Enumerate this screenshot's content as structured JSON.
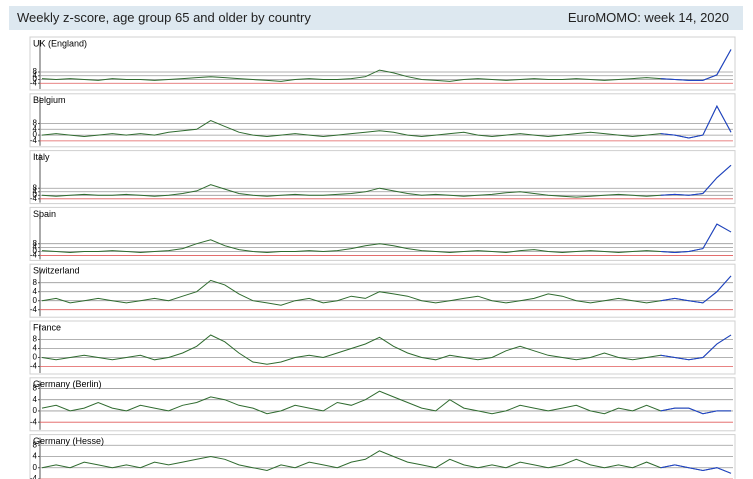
{
  "title": "Weekly z-score, age group 65 and older by country",
  "source": "EuroMOMO: week 14, 2020",
  "chart_data": [
    {
      "type": "line",
      "title": "UK (England)",
      "ylim": [
        -8,
        40
      ],
      "yticks": [
        -4,
        0,
        4,
        8
      ],
      "grid": true,
      "series": [
        {
          "color": "#2f6b2f",
          "values": [
            1,
            0,
            1,
            0,
            -1,
            1,
            0,
            0,
            -1,
            0,
            1,
            2,
            3,
            2,
            1,
            0,
            -1,
            -2,
            0,
            1,
            0,
            0,
            1,
            3,
            10,
            7,
            3,
            0,
            -1,
            -2,
            0,
            1,
            0,
            -1,
            0,
            1,
            0,
            0,
            1,
            0,
            -1,
            0,
            1,
            2,
            1,
            0,
            -1,
            -1,
            5,
            32
          ]
        },
        {
          "color": "#1f3fd0",
          "values": [
            null,
            null,
            null,
            null,
            null,
            null,
            null,
            null,
            null,
            null,
            null,
            null,
            null,
            null,
            null,
            null,
            null,
            null,
            null,
            null,
            null,
            null,
            null,
            null,
            null,
            null,
            null,
            null,
            null,
            null,
            null,
            null,
            null,
            null,
            null,
            null,
            null,
            null,
            null,
            null,
            null,
            null,
            null,
            null,
            1,
            0,
            -1,
            -1,
            5,
            32
          ]
        }
      ]
    },
    {
      "type": "line",
      "title": "Belgium",
      "ylim": [
        -6,
        25
      ],
      "yticks": [
        -4,
        0,
        4,
        8
      ],
      "grid": true,
      "series": [
        {
          "color": "#2f6b2f",
          "values": [
            0,
            1,
            0,
            -1,
            0,
            1,
            0,
            1,
            0,
            2,
            3,
            4,
            10,
            6,
            2,
            0,
            -1,
            0,
            1,
            0,
            -1,
            0,
            1,
            2,
            3,
            2,
            0,
            -1,
            0,
            1,
            2,
            0,
            -1,
            0,
            1,
            0,
            -1,
            0,
            1,
            2,
            1,
            0,
            -1,
            0,
            1,
            0,
            -2,
            0,
            20,
            2
          ]
        },
        {
          "color": "#1f3fd0",
          "values": [
            null,
            null,
            null,
            null,
            null,
            null,
            null,
            null,
            null,
            null,
            null,
            null,
            null,
            null,
            null,
            null,
            null,
            null,
            null,
            null,
            null,
            null,
            null,
            null,
            null,
            null,
            null,
            null,
            null,
            null,
            null,
            null,
            null,
            null,
            null,
            null,
            null,
            null,
            null,
            null,
            null,
            null,
            null,
            null,
            1,
            0,
            -2,
            0,
            20,
            2
          ]
        }
      ]
    },
    {
      "type": "line",
      "title": "Italy",
      "ylim": [
        -6,
        45
      ],
      "yticks": [
        -4,
        0,
        4,
        8
      ],
      "grid": true,
      "series": [
        {
          "color": "#2f6b2f",
          "values": [
            0,
            -1,
            0,
            1,
            0,
            0,
            1,
            0,
            -1,
            0,
            2,
            5,
            12,
            7,
            2,
            0,
            -1,
            0,
            1,
            0,
            0,
            1,
            2,
            4,
            8,
            5,
            2,
            0,
            1,
            0,
            -1,
            0,
            1,
            3,
            4,
            2,
            0,
            -1,
            -2,
            -1,
            0,
            1,
            0,
            -1,
            0,
            1,
            0,
            2,
            20,
            34
          ]
        },
        {
          "color": "#1f3fd0",
          "values": [
            null,
            null,
            null,
            null,
            null,
            null,
            null,
            null,
            null,
            null,
            null,
            null,
            null,
            null,
            null,
            null,
            null,
            null,
            null,
            null,
            null,
            null,
            null,
            null,
            null,
            null,
            null,
            null,
            null,
            null,
            null,
            null,
            null,
            null,
            null,
            null,
            null,
            null,
            null,
            null,
            null,
            null,
            null,
            null,
            0,
            1,
            0,
            2,
            20,
            34
          ]
        }
      ]
    },
    {
      "type": "line",
      "title": "Spain",
      "ylim": [
        -6,
        40
      ],
      "yticks": [
        -4,
        0,
        4,
        8
      ],
      "grid": true,
      "series": [
        {
          "color": "#2f6b2f",
          "values": [
            1,
            0,
            -1,
            0,
            0,
            1,
            0,
            -1,
            0,
            1,
            3,
            8,
            12,
            6,
            2,
            0,
            -1,
            0,
            0,
            1,
            0,
            1,
            3,
            6,
            8,
            6,
            3,
            1,
            0,
            -1,
            0,
            1,
            0,
            -1,
            1,
            2,
            0,
            -1,
            0,
            1,
            0,
            -1,
            0,
            1,
            0,
            -1,
            0,
            3,
            28,
            20
          ]
        },
        {
          "color": "#1f3fd0",
          "values": [
            null,
            null,
            null,
            null,
            null,
            null,
            null,
            null,
            null,
            null,
            null,
            null,
            null,
            null,
            null,
            null,
            null,
            null,
            null,
            null,
            null,
            null,
            null,
            null,
            null,
            null,
            null,
            null,
            null,
            null,
            null,
            null,
            null,
            null,
            null,
            null,
            null,
            null,
            null,
            null,
            null,
            null,
            null,
            null,
            0,
            -1,
            0,
            3,
            28,
            20
          ]
        }
      ]
    },
    {
      "type": "line",
      "title": "Switzerland",
      "ylim": [
        -6,
        14
      ],
      "yticks": [
        -4,
        0,
        4,
        8
      ],
      "grid": true,
      "series": [
        {
          "color": "#2f6b2f",
          "values": [
            0,
            1,
            -1,
            0,
            1,
            0,
            -1,
            0,
            1,
            0,
            2,
            4,
            9,
            7,
            3,
            0,
            -1,
            -2,
            0,
            1,
            -1,
            0,
            2,
            1,
            4,
            3,
            2,
            0,
            -1,
            0,
            1,
            2,
            0,
            -1,
            0,
            1,
            3,
            2,
            0,
            -1,
            0,
            1,
            0,
            -1,
            0,
            1,
            0,
            -1,
            4,
            11
          ]
        },
        {
          "color": "#1f3fd0",
          "values": [
            null,
            null,
            null,
            null,
            null,
            null,
            null,
            null,
            null,
            null,
            null,
            null,
            null,
            null,
            null,
            null,
            null,
            null,
            null,
            null,
            null,
            null,
            null,
            null,
            null,
            null,
            null,
            null,
            null,
            null,
            null,
            null,
            null,
            null,
            null,
            null,
            null,
            null,
            null,
            null,
            null,
            null,
            null,
            null,
            0,
            1,
            0,
            -1,
            4,
            11
          ]
        }
      ]
    },
    {
      "type": "line",
      "title": "France",
      "ylim": [
        -6,
        14
      ],
      "yticks": [
        -4,
        0,
        4,
        8
      ],
      "grid": true,
      "series": [
        {
          "color": "#2f6b2f",
          "values": [
            0,
            -1,
            0,
            1,
            0,
            -1,
            0,
            1,
            -1,
            0,
            2,
            5,
            10,
            7,
            2,
            -2,
            -3,
            -2,
            0,
            1,
            0,
            2,
            4,
            6,
            9,
            5,
            2,
            0,
            -1,
            1,
            0,
            -1,
            0,
            3,
            5,
            3,
            1,
            0,
            -1,
            0,
            2,
            0,
            -1,
            0,
            1,
            0,
            -1,
            0,
            6,
            10
          ]
        },
        {
          "color": "#1f3fd0",
          "values": [
            null,
            null,
            null,
            null,
            null,
            null,
            null,
            null,
            null,
            null,
            null,
            null,
            null,
            null,
            null,
            null,
            null,
            null,
            null,
            null,
            null,
            null,
            null,
            null,
            null,
            null,
            null,
            null,
            null,
            null,
            null,
            null,
            null,
            null,
            null,
            null,
            null,
            null,
            null,
            null,
            null,
            null,
            null,
            null,
            1,
            0,
            -1,
            0,
            6,
            10
          ]
        }
      ]
    },
    {
      "type": "line",
      "title": "Germany (Berlin)",
      "ylim": [
        -6,
        10
      ],
      "yticks": [
        -4,
        0,
        4,
        8
      ],
      "grid": true,
      "series": [
        {
          "color": "#2f6b2f",
          "values": [
            1,
            2,
            0,
            1,
            3,
            1,
            0,
            2,
            1,
            0,
            2,
            3,
            5,
            4,
            2,
            1,
            -1,
            0,
            2,
            1,
            0,
            3,
            2,
            4,
            7,
            5,
            3,
            1,
            0,
            4,
            1,
            0,
            -1,
            0,
            2,
            1,
            0,
            1,
            2,
            0,
            -1,
            1,
            0,
            2,
            0,
            1,
            1,
            -1,
            0,
            0
          ]
        },
        {
          "color": "#1f3fd0",
          "values": [
            null,
            null,
            null,
            null,
            null,
            null,
            null,
            null,
            null,
            null,
            null,
            null,
            null,
            null,
            null,
            null,
            null,
            null,
            null,
            null,
            null,
            null,
            null,
            null,
            null,
            null,
            null,
            null,
            null,
            null,
            null,
            null,
            null,
            null,
            null,
            null,
            null,
            null,
            null,
            null,
            null,
            null,
            null,
            null,
            0,
            1,
            1,
            -1,
            0,
            0
          ]
        }
      ]
    },
    {
      "type": "line",
      "title": "Germany (Hesse)",
      "ylim": [
        -6,
        10
      ],
      "yticks": [
        -4,
        0,
        4,
        8
      ],
      "grid": true,
      "series": [
        {
          "color": "#2f6b2f",
          "values": [
            0,
            1,
            0,
            2,
            1,
            0,
            1,
            0,
            2,
            1,
            2,
            3,
            4,
            3,
            1,
            0,
            -1,
            1,
            0,
            2,
            1,
            0,
            2,
            3,
            6,
            4,
            2,
            1,
            0,
            3,
            1,
            0,
            1,
            0,
            2,
            1,
            0,
            1,
            3,
            1,
            0,
            1,
            0,
            2,
            0,
            1,
            0,
            -1,
            0,
            -2
          ]
        },
        {
          "color": "#1f3fd0",
          "values": [
            null,
            null,
            null,
            null,
            null,
            null,
            null,
            null,
            null,
            null,
            null,
            null,
            null,
            null,
            null,
            null,
            null,
            null,
            null,
            null,
            null,
            null,
            null,
            null,
            null,
            null,
            null,
            null,
            null,
            null,
            null,
            null,
            null,
            null,
            null,
            null,
            null,
            null,
            null,
            null,
            null,
            null,
            null,
            null,
            0,
            1,
            0,
            -1,
            0,
            -2
          ]
        }
      ]
    }
  ]
}
